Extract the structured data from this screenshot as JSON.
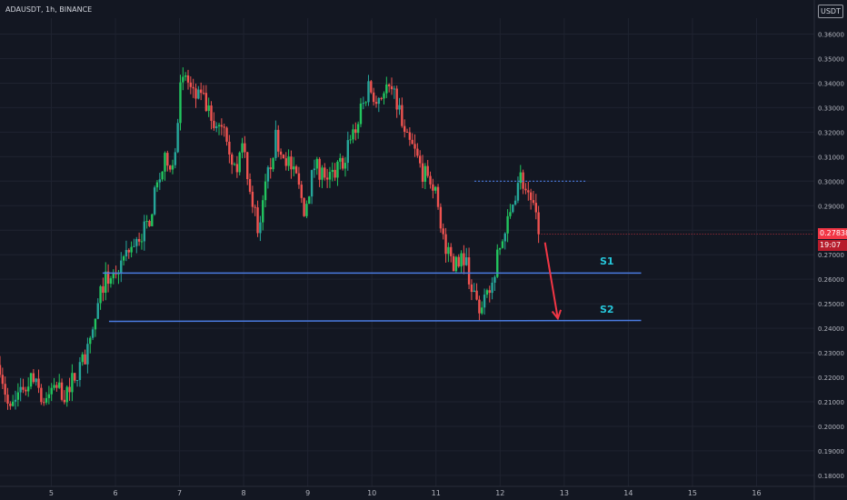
{
  "header": {
    "title": "ADAUSDT, 1h, BINANCE",
    "currency_label": "USDT"
  },
  "price_tag": {
    "value": "0.27838",
    "countdown": "19:07"
  },
  "colors": {
    "background": "#131722",
    "grid": "#1f2330",
    "up_candle": "#26a69a",
    "up_bright": "#22c55e",
    "down_candle": "#ef5350",
    "support_line": "#4a7be0",
    "label": "#26c6da",
    "arrow": "#f23645",
    "axis_text": "#b2b5be"
  },
  "chart_data": {
    "type": "candlestick",
    "symbol": "ADAUSDT",
    "interval": "1h",
    "exchange": "BINANCE",
    "x_ticks": [
      "5",
      "6",
      "7",
      "8",
      "9",
      "10",
      "11",
      "12",
      "13",
      "14",
      "15",
      "16"
    ],
    "x_range_days": [
      4.2,
      16.9
    ],
    "y_ticks": [
      "0.36000",
      "0.35000",
      "0.34000",
      "0.33000",
      "0.32000",
      "0.31000",
      "0.30000",
      "0.29000",
      "0.28000",
      "0.27000",
      "0.26000",
      "0.25000",
      "0.24000",
      "0.23000",
      "0.22000",
      "0.21000",
      "0.20000",
      "0.19000",
      "0.18000"
    ],
    "y_range": [
      0.1755,
      0.3665
    ],
    "price_path": [
      [
        4.2,
        0.225
      ],
      [
        4.35,
        0.205
      ],
      [
        4.5,
        0.215
      ],
      [
        4.7,
        0.219
      ],
      [
        4.9,
        0.21
      ],
      [
        5.05,
        0.218
      ],
      [
        5.2,
        0.213
      ],
      [
        5.4,
        0.222
      ],
      [
        5.6,
        0.232
      ],
      [
        5.8,
        0.258
      ],
      [
        6.0,
        0.263
      ],
      [
        6.15,
        0.269
      ],
      [
        6.3,
        0.275
      ],
      [
        6.5,
        0.282
      ],
      [
        6.65,
        0.298
      ],
      [
        6.8,
        0.31
      ],
      [
        6.9,
        0.305
      ],
      [
        7.0,
        0.336
      ],
      [
        7.1,
        0.343
      ],
      [
        7.2,
        0.335
      ],
      [
        7.4,
        0.332
      ],
      [
        7.55,
        0.32
      ],
      [
        7.7,
        0.325
      ],
      [
        7.85,
        0.305
      ],
      [
        8.0,
        0.313
      ],
      [
        8.15,
        0.29
      ],
      [
        8.25,
        0.279
      ],
      [
        8.35,
        0.299
      ],
      [
        8.5,
        0.318
      ],
      [
        8.65,
        0.31
      ],
      [
        8.8,
        0.303
      ],
      [
        8.95,
        0.288
      ],
      [
        9.1,
        0.306
      ],
      [
        9.25,
        0.303
      ],
      [
        9.4,
        0.302
      ],
      [
        9.55,
        0.309
      ],
      [
        9.75,
        0.322
      ],
      [
        9.95,
        0.338
      ],
      [
        10.1,
        0.334
      ],
      [
        10.25,
        0.338
      ],
      [
        10.4,
        0.332
      ],
      [
        10.5,
        0.318
      ],
      [
        10.65,
        0.313
      ],
      [
        10.8,
        0.303
      ],
      [
        10.95,
        0.3
      ],
      [
        11.05,
        0.288
      ],
      [
        11.15,
        0.271
      ],
      [
        11.3,
        0.266
      ],
      [
        11.45,
        0.27
      ],
      [
        11.55,
        0.257
      ],
      [
        11.7,
        0.246
      ],
      [
        11.85,
        0.256
      ],
      [
        12.0,
        0.273
      ],
      [
        12.15,
        0.285
      ],
      [
        12.3,
        0.303
      ],
      [
        12.4,
        0.297
      ],
      [
        12.5,
        0.292
      ],
      [
        12.6,
        0.278
      ]
    ],
    "candles": {
      "count": 210,
      "first_day": 4.2,
      "last_day": 12.6,
      "last_close": 0.27838
    },
    "lines": [
      {
        "label": "S1",
        "x_start": 5.8,
        "x_end": 14.2,
        "y_start": 0.2625,
        "y_end": 0.2625
      },
      {
        "label": "S2",
        "x_start": 5.9,
        "x_end": 14.2,
        "y_start": 0.2428,
        "y_end": 0.2432
      }
    ],
    "resistance_dotted": {
      "x_start": 11.6,
      "x_end": 13.35,
      "y": 0.3
    },
    "arrow": {
      "from": [
        12.7,
        0.275
      ],
      "to": [
        12.9,
        0.244
      ]
    }
  }
}
